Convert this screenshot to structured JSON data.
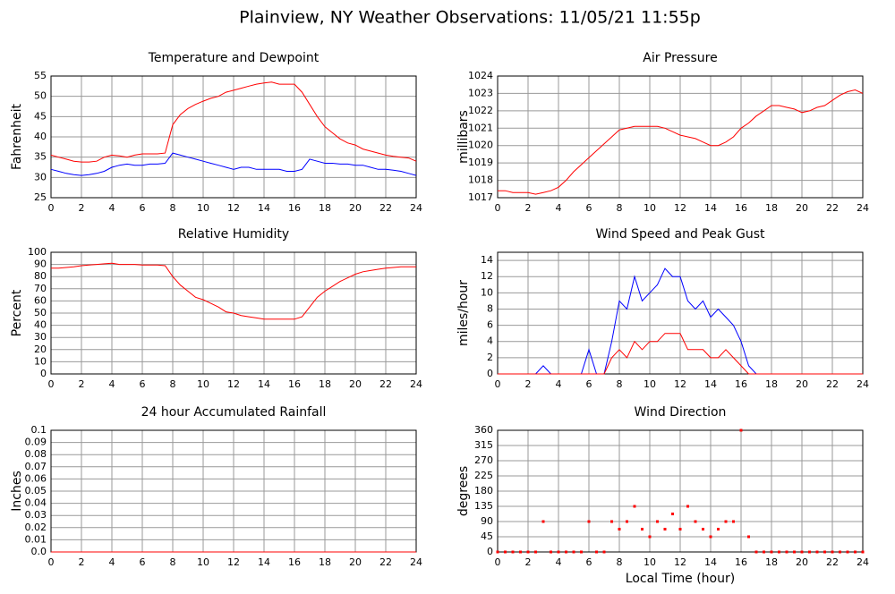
{
  "title": "Plainview, NY Weather Observations: 11/05/21 11:55p",
  "chart_data": [
    {
      "type": "line",
      "title": "Temperature and Dewpoint",
      "ylabel": "Fahrenheit",
      "x": [
        0,
        0.5,
        1,
        1.5,
        2,
        2.5,
        3,
        3.5,
        4,
        4.5,
        5,
        5.5,
        6,
        6.5,
        7,
        7.5,
        8,
        8.5,
        9,
        9.5,
        10,
        10.5,
        11,
        11.5,
        12,
        12.5,
        13,
        13.5,
        14,
        14.5,
        15,
        15.5,
        16,
        16.5,
        17,
        17.5,
        18,
        18.5,
        19,
        19.5,
        20,
        20.5,
        21,
        21.5,
        22,
        22.5,
        23,
        23.5,
        24
      ],
      "series": [
        {
          "color": "#ff0000",
          "values": [
            35.5,
            35,
            34.5,
            34,
            33.8,
            33.8,
            34,
            35,
            35.5,
            35.3,
            35,
            35.5,
            35.8,
            35.8,
            35.8,
            36,
            43,
            45.5,
            47,
            48,
            48.8,
            49.5,
            50,
            51,
            51.5,
            52,
            52.5,
            53,
            53.3,
            53.5,
            53,
            53,
            53,
            51,
            48,
            45,
            42.5,
            41,
            39.5,
            38.5,
            38,
            37,
            36.5,
            36,
            35.5,
            35.2,
            35,
            34.8,
            34
          ]
        },
        {
          "color": "#0000ff",
          "values": [
            32,
            31.5,
            31,
            30.7,
            30.5,
            30.7,
            31,
            31.5,
            32.5,
            33,
            33.3,
            33,
            33,
            33.3,
            33.3,
            33.5,
            36,
            35.5,
            35,
            34.5,
            34,
            33.5,
            33,
            32.5,
            32,
            32.5,
            32.5,
            32,
            32,
            32,
            32,
            31.5,
            31.5,
            32,
            34.5,
            34,
            33.5,
            33.5,
            33.3,
            33.3,
            33,
            33,
            32.5,
            32,
            32,
            31.8,
            31.5,
            31,
            30.5
          ]
        }
      ],
      "xlim": [
        0,
        24
      ],
      "xticks": [
        0,
        2,
        4,
        6,
        8,
        10,
        12,
        14,
        16,
        18,
        20,
        22,
        24
      ],
      "ylim": [
        25,
        55
      ],
      "yticks": [
        25,
        30,
        35,
        40,
        45,
        50,
        55
      ],
      "grid": true
    },
    {
      "type": "line",
      "title": "Air Pressure",
      "ylabel": "millibars",
      "x": [
        0,
        0.5,
        1,
        1.5,
        2,
        2.5,
        3,
        3.5,
        4,
        4.5,
        5,
        5.5,
        6,
        6.5,
        7,
        7.5,
        8,
        8.5,
        9,
        9.5,
        10,
        10.5,
        11,
        11.5,
        12,
        12.5,
        13,
        13.5,
        14,
        14.5,
        15,
        15.5,
        16,
        16.5,
        17,
        17.5,
        18,
        18.5,
        19,
        19.5,
        20,
        20.5,
        21,
        21.5,
        22,
        22.5,
        23,
        23.5,
        24
      ],
      "series": [
        {
          "color": "#ff0000",
          "values": [
            1017.4,
            1017.4,
            1017.3,
            1017.3,
            1017.3,
            1017.2,
            1017.3,
            1017.4,
            1017.6,
            1018.0,
            1018.5,
            1018.9,
            1019.3,
            1019.7,
            1020.1,
            1020.5,
            1020.9,
            1021.0,
            1021.1,
            1021.1,
            1021.1,
            1021.1,
            1021.0,
            1020.8,
            1020.6,
            1020.5,
            1020.4,
            1020.2,
            1020.0,
            1020.0,
            1020.2,
            1020.5,
            1021.0,
            1021.3,
            1021.7,
            1022.0,
            1022.3,
            1022.3,
            1022.2,
            1022.1,
            1021.9,
            1022.0,
            1022.2,
            1022.3,
            1022.6,
            1022.9,
            1023.1,
            1023.2,
            1023.0
          ]
        }
      ],
      "xlim": [
        0,
        24
      ],
      "xticks": [
        0,
        2,
        4,
        6,
        8,
        10,
        12,
        14,
        16,
        18,
        20,
        22,
        24
      ],
      "ylim": [
        1017,
        1024
      ],
      "yticks": [
        1017,
        1018,
        1019,
        1020,
        1021,
        1022,
        1023,
        1024
      ],
      "grid": true
    },
    {
      "type": "line",
      "title": "Relative Humidity",
      "ylabel": "Percent",
      "x": [
        0,
        0.5,
        1,
        1.5,
        2,
        2.5,
        3,
        3.5,
        4,
        4.5,
        5,
        5.5,
        6,
        6.5,
        7,
        7.5,
        8,
        8.5,
        9,
        9.5,
        10,
        10.5,
        11,
        11.5,
        12,
        12.5,
        13,
        13.5,
        14,
        14.5,
        15,
        15.5,
        16,
        16.5,
        17,
        17.5,
        18,
        18.5,
        19,
        19.5,
        20,
        20.5,
        21,
        21.5,
        22,
        22.5,
        23,
        23.5,
        24
      ],
      "series": [
        {
          "color": "#ff0000",
          "values": [
            87,
            87,
            87.5,
            88,
            89,
            89.5,
            90,
            90.5,
            91,
            90,
            90,
            90,
            89.5,
            89.5,
            89.5,
            89,
            80,
            73,
            68,
            63,
            61,
            58,
            55,
            51,
            50,
            48,
            47,
            46,
            45,
            45,
            45,
            45,
            45,
            47,
            55,
            63,
            68,
            72,
            76,
            79,
            82,
            84,
            85,
            86,
            87,
            87.5,
            88,
            88,
            88
          ]
        }
      ],
      "xlim": [
        0,
        24
      ],
      "xticks": [
        0,
        2,
        4,
        6,
        8,
        10,
        12,
        14,
        16,
        18,
        20,
        22,
        24
      ],
      "ylim": [
        0,
        100
      ],
      "yticks": [
        0,
        10,
        20,
        30,
        40,
        50,
        60,
        70,
        80,
        90,
        100
      ],
      "grid": true
    },
    {
      "type": "line",
      "title": "Wind Speed and Peak Gust",
      "ylabel": "miles/hour",
      "x": [
        0,
        0.5,
        1,
        1.5,
        2,
        2.5,
        3,
        3.5,
        4,
        4.5,
        5,
        5.5,
        6,
        6.5,
        7,
        7.5,
        8,
        8.5,
        9,
        9.5,
        10,
        10.5,
        11,
        11.5,
        12,
        12.5,
        13,
        13.5,
        14,
        14.5,
        15,
        15.5,
        16,
        16.5,
        17,
        17.5,
        18,
        18.5,
        19,
        19.5,
        20,
        20.5,
        21,
        21.5,
        22,
        22.5,
        23,
        23.5,
        24
      ],
      "series": [
        {
          "color": "#0000ff",
          "values": [
            0,
            0,
            0,
            0,
            0,
            0,
            1,
            0,
            0,
            0,
            0,
            0,
            3,
            0,
            0,
            4,
            9,
            8,
            12,
            9,
            10,
            11,
            13,
            12,
            12,
            9,
            8,
            9,
            7,
            8,
            7,
            6,
            4,
            1,
            0,
            0,
            0,
            0,
            0,
            0,
            0,
            0,
            0,
            0,
            0,
            0,
            0,
            0,
            0
          ]
        },
        {
          "color": "#ff0000",
          "values": [
            0,
            0,
            0,
            0,
            0,
            0,
            0,
            0,
            0,
            0,
            0,
            0,
            0,
            0,
            0,
            2,
            3,
            2,
            4,
            3,
            4,
            4,
            5,
            5,
            5,
            3,
            3,
            3,
            2,
            2,
            3,
            2,
            1,
            0,
            0,
            0,
            0,
            0,
            0,
            0,
            0,
            0,
            0,
            0,
            0,
            0,
            0,
            0,
            0
          ]
        }
      ],
      "xlim": [
        0,
        24
      ],
      "xticks": [
        0,
        2,
        4,
        6,
        8,
        10,
        12,
        14,
        16,
        18,
        20,
        22,
        24
      ],
      "ylim": [
        0,
        15
      ],
      "yticks": [
        0,
        2,
        4,
        6,
        8,
        10,
        12,
        14
      ],
      "grid": true
    },
    {
      "type": "line",
      "title": "24 hour Accumulated Rainfall",
      "ylabel": "Inches",
      "x": [
        0,
        24
      ],
      "series": [
        {
          "color": "#ff0000",
          "values": [
            0,
            0
          ]
        }
      ],
      "xlim": [
        0,
        24
      ],
      "xticks": [
        0,
        2,
        4,
        6,
        8,
        10,
        12,
        14,
        16,
        18,
        20,
        22,
        24
      ],
      "ylim": [
        0,
        0.1
      ],
      "yticks": [
        {
          "value": 0,
          "label": "0.0"
        },
        0.01,
        0.02,
        0.03,
        0.04,
        0.05,
        0.06,
        0.07,
        0.08,
        0.09,
        0.1
      ],
      "grid": true
    },
    {
      "type": "scatter",
      "title": "Wind Direction",
      "ylabel": "degrees",
      "xlabel": "Local Time (hour)",
      "x": [
        0,
        0.5,
        1,
        1.5,
        2,
        2.5,
        3,
        3.5,
        4,
        4.5,
        5,
        5.5,
        6,
        6.5,
        7,
        7.5,
        8,
        8.5,
        9,
        9.5,
        10,
        10.5,
        11,
        11.5,
        12,
        12.5,
        13,
        13.5,
        14,
        14.5,
        15,
        15.5,
        16,
        16.5,
        17,
        17.5,
        18,
        18.5,
        19,
        19.5,
        20,
        20.5,
        21,
        21.5,
        22,
        22.5,
        23,
        23.5,
        24
      ],
      "series": [
        {
          "color": "#ff0000",
          "values": [
            0,
            0,
            0,
            0,
            0,
            0,
            90,
            0,
            0,
            0,
            0,
            0,
            90,
            0,
            0,
            90,
            67.5,
            90,
            135,
            67.5,
            45,
            90,
            67.5,
            112.5,
            67.5,
            135,
            90,
            67.5,
            45,
            67.5,
            90,
            90,
            360,
            45,
            0,
            0,
            0,
            0,
            0,
            0,
            0,
            0,
            0,
            0,
            0,
            0,
            0,
            0,
            0
          ]
        }
      ],
      "xlim": [
        0,
        24
      ],
      "xticks": [
        0,
        2,
        4,
        6,
        8,
        10,
        12,
        14,
        16,
        18,
        20,
        22,
        24
      ],
      "ylim": [
        0,
        360
      ],
      "yticks": [
        0,
        45,
        90,
        135,
        180,
        225,
        270,
        315,
        360
      ],
      "grid": true
    }
  ]
}
